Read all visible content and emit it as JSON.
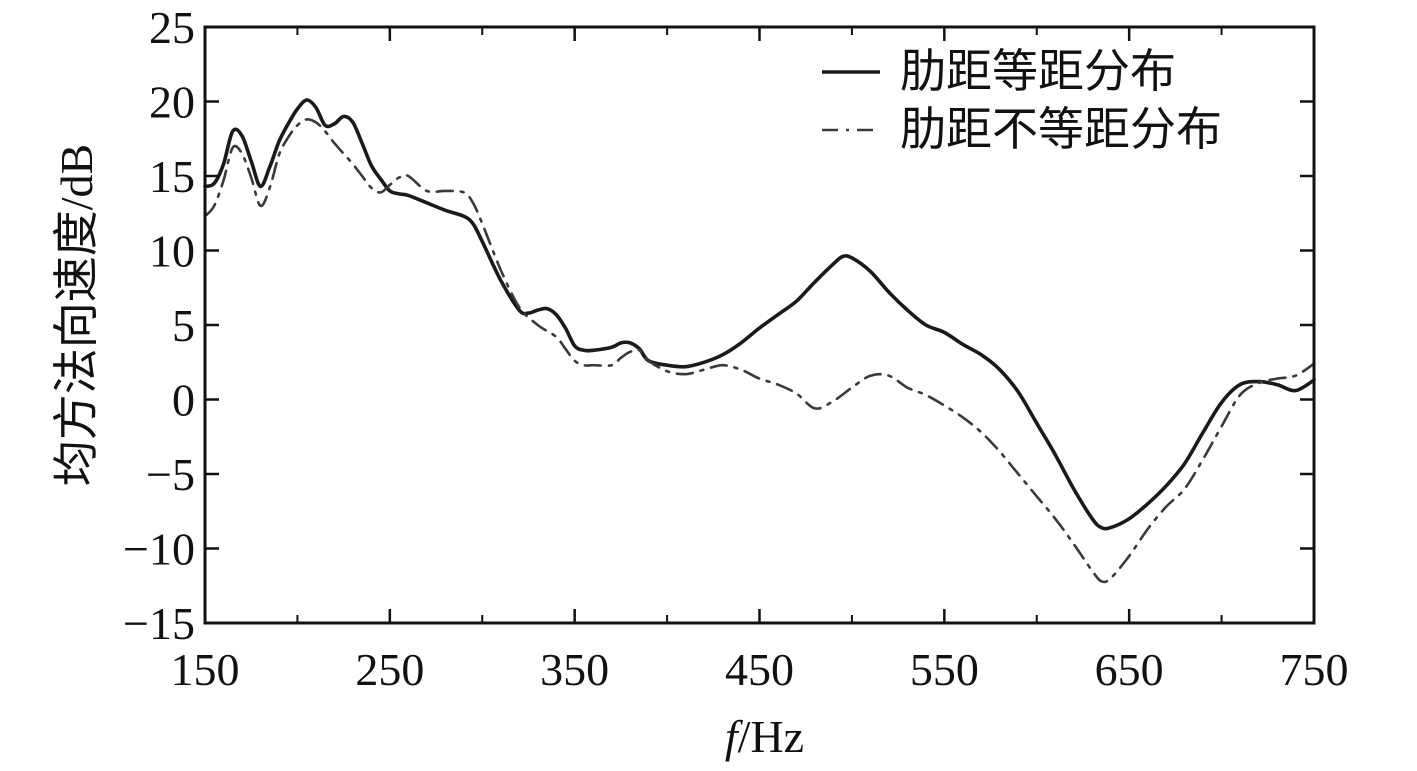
{
  "chart_data": {
    "type": "line",
    "title": "",
    "xlabel_italic": "f",
    "xlabel_rest": "/Hz",
    "ylabel": "均方法向速度/dB",
    "xlim": [
      150,
      750
    ],
    "ylim": [
      -15,
      25
    ],
    "xticks": [
      150,
      250,
      350,
      450,
      550,
      650,
      750
    ],
    "yticks": [
      -15,
      -10,
      -5,
      0,
      5,
      10,
      15,
      20,
      25
    ],
    "grid": false,
    "legend_position": "top-right",
    "series": [
      {
        "name": "肋距等距分布",
        "style": "solid",
        "color": "#1a1a1a",
        "x": [
          150,
          155,
          160,
          165,
          170,
          175,
          180,
          185,
          190,
          195,
          200,
          205,
          210,
          215,
          220,
          225,
          230,
          235,
          240,
          245,
          250,
          255,
          260,
          270,
          280,
          290,
          295,
          300,
          310,
          320,
          325,
          330,
          335,
          340,
          345,
          350,
          355,
          360,
          370,
          375,
          380,
          385,
          390,
          400,
          410,
          420,
          430,
          440,
          450,
          460,
          470,
          480,
          490,
          495,
          500,
          510,
          520,
          530,
          540,
          550,
          560,
          570,
          580,
          590,
          600,
          610,
          620,
          630,
          635,
          640,
          650,
          660,
          670,
          680,
          690,
          700,
          710,
          720,
          730,
          740,
          750
        ],
        "y": [
          14.3,
          14.5,
          15.8,
          18.0,
          17.7,
          16.0,
          14.3,
          15.6,
          17.3,
          18.5,
          19.5,
          20.1,
          19.6,
          18.4,
          18.5,
          19.0,
          18.6,
          17.2,
          15.7,
          14.8,
          14.0,
          13.8,
          13.7,
          13.2,
          12.7,
          12.3,
          11.8,
          10.6,
          8.0,
          6.0,
          5.8,
          6.0,
          6.1,
          5.7,
          4.8,
          3.6,
          3.3,
          3.3,
          3.5,
          3.8,
          3.8,
          3.4,
          2.6,
          2.3,
          2.2,
          2.5,
          3.0,
          3.8,
          4.8,
          5.7,
          6.6,
          7.9,
          9.1,
          9.6,
          9.5,
          8.6,
          7.2,
          6.0,
          5.0,
          4.5,
          3.7,
          3.0,
          2.0,
          0.5,
          -1.6,
          -3.7,
          -6.0,
          -8.0,
          -8.6,
          -8.6,
          -8.0,
          -7.0,
          -5.8,
          -4.3,
          -2.2,
          -0.2,
          1.0,
          1.2,
          1.0,
          0.6,
          1.3
        ]
      },
      {
        "name": "肋距不等距分布",
        "style": "dashdot",
        "color": "#3a3a3a",
        "x": [
          150,
          155,
          160,
          165,
          170,
          175,
          180,
          185,
          190,
          195,
          200,
          205,
          210,
          215,
          220,
          225,
          230,
          235,
          240,
          245,
          250,
          255,
          260,
          270,
          280,
          290,
          295,
          300,
          310,
          320,
          330,
          340,
          345,
          350,
          355,
          360,
          370,
          375,
          380,
          385,
          390,
          400,
          410,
          420,
          430,
          440,
          450,
          460,
          470,
          480,
          490,
          500,
          510,
          520,
          530,
          540,
          550,
          560,
          570,
          580,
          590,
          600,
          610,
          620,
          630,
          635,
          640,
          650,
          660,
          670,
          680,
          690,
          700,
          710,
          720,
          730,
          740,
          750
        ],
        "y": [
          12.3,
          13.0,
          14.7,
          16.9,
          16.5,
          14.9,
          13.0,
          14.2,
          16.4,
          17.6,
          18.4,
          18.8,
          18.6,
          18.0,
          17.2,
          16.5,
          15.8,
          15.0,
          14.2,
          13.9,
          14.4,
          14.9,
          15.0,
          14.0,
          14.0,
          13.9,
          13.2,
          11.8,
          8.7,
          6.2,
          5.0,
          4.2,
          3.4,
          2.6,
          2.3,
          2.3,
          2.3,
          2.8,
          3.2,
          3.3,
          2.6,
          1.9,
          1.7,
          2.0,
          2.3,
          2.0,
          1.4,
          1.0,
          0.4,
          -0.6,
          -0.1,
          0.8,
          1.6,
          1.6,
          0.8,
          0.3,
          -0.4,
          -1.2,
          -2.2,
          -3.5,
          -5.0,
          -6.5,
          -8.0,
          -9.7,
          -11.5,
          -12.2,
          -12.0,
          -10.5,
          -8.7,
          -7.2,
          -6.0,
          -4.0,
          -1.8,
          0.3,
          1.1,
          1.4,
          1.6,
          2.4
        ]
      }
    ]
  }
}
